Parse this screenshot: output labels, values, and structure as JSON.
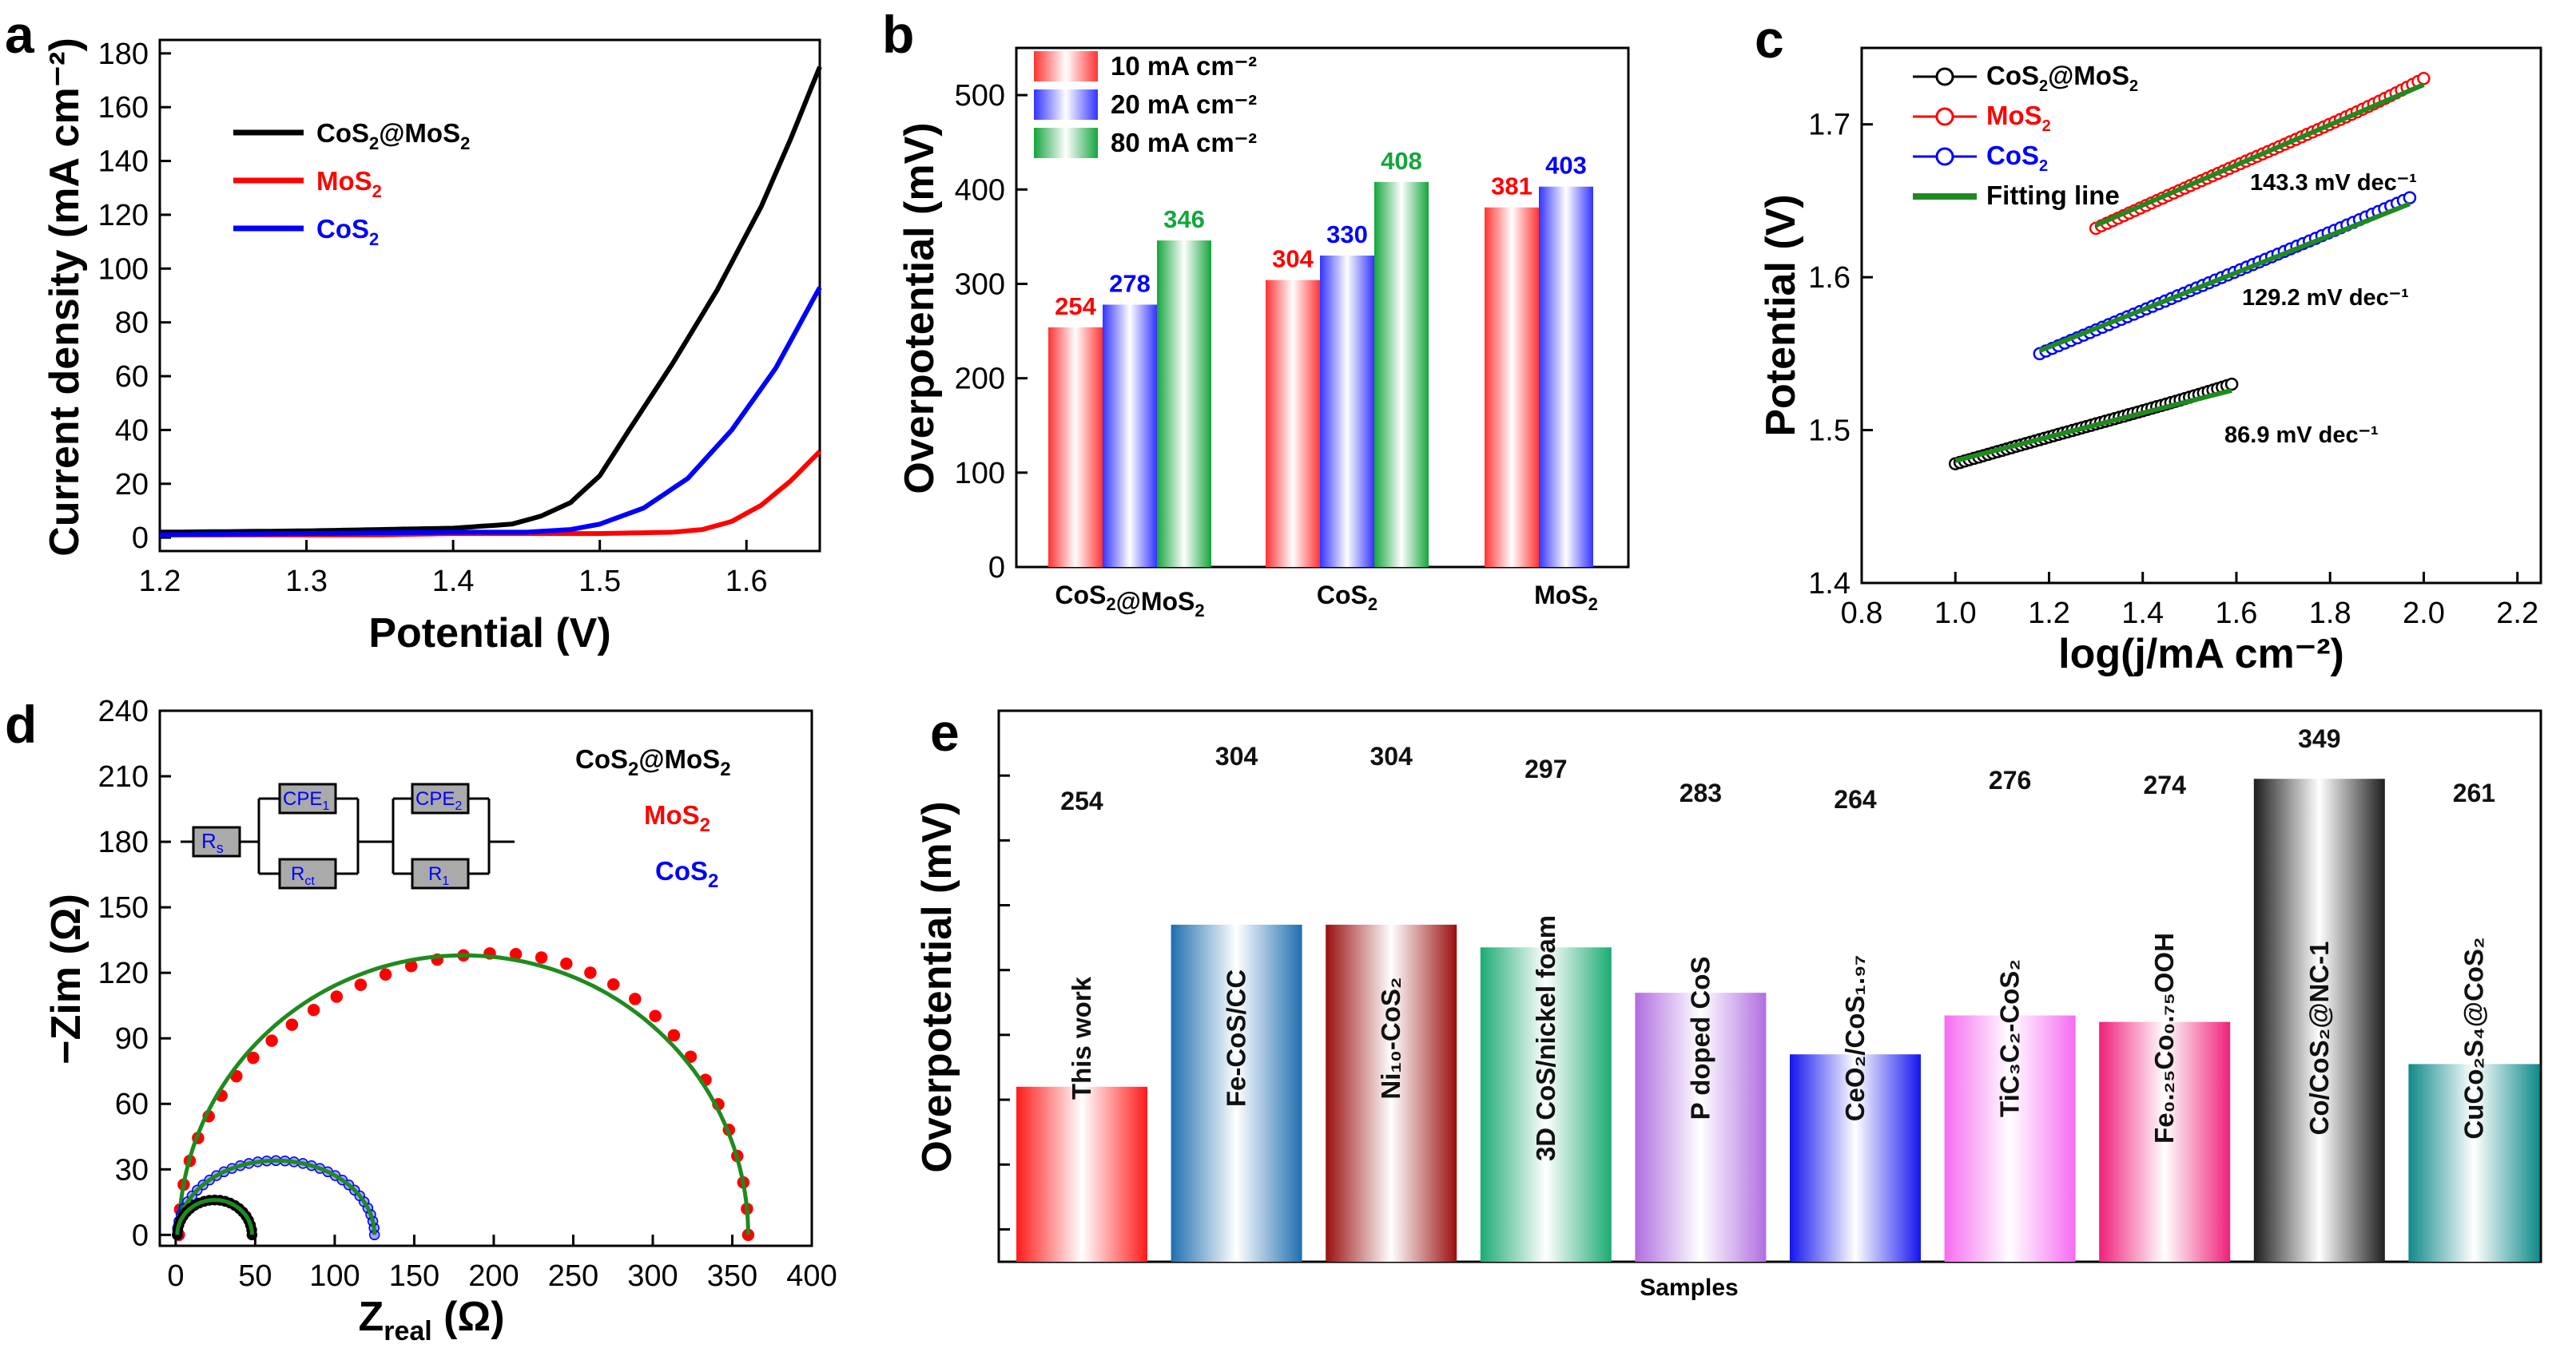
{
  "colors": {
    "cos2mos2": "#000000",
    "mos2": "#ff0000",
    "cos2": "#0000ff",
    "fit": "#1f8a1f",
    "bar10": "#ff3333",
    "bar20": "#3333ff",
    "bar80": "#14a53c"
  },
  "chart_data": [
    {
      "panel": "a",
      "type": "line",
      "xlabel": "Potential (V)",
      "ylabel": "Current density (mA cm⁻²)",
      "xlim": [
        1.2,
        1.65
      ],
      "ylim": [
        -5,
        185
      ],
      "xticks": [
        "1.2",
        "1.3",
        "1.4",
        "1.5",
        "1.6"
      ],
      "yticks": [
        "0",
        "20",
        "40",
        "60",
        "80",
        "100",
        "120",
        "140",
        "160",
        "180"
      ],
      "legend": [
        "CoS₂@MoS₂",
        "MoS₂",
        "CoS₂"
      ],
      "series": [
        {
          "name": "CoS₂@MoS₂",
          "x": [
            1.2,
            1.3,
            1.4,
            1.44,
            1.46,
            1.48,
            1.5,
            1.52,
            1.55,
            1.58,
            1.61,
            1.63,
            1.65
          ],
          "y": [
            2,
            2.5,
            3.5,
            5,
            8,
            13,
            23,
            40,
            65,
            92,
            123,
            148,
            175
          ]
        },
        {
          "name": "MoS₂",
          "x": [
            1.2,
            1.35,
            1.4,
            1.5,
            1.55,
            1.57,
            1.59,
            1.61,
            1.63,
            1.65
          ],
          "y": [
            1,
            1,
            1.5,
            1.5,
            2,
            3,
            6,
            12,
            21,
            32
          ]
        },
        {
          "name": "CoS₂",
          "x": [
            1.2,
            1.3,
            1.4,
            1.45,
            1.48,
            1.5,
            1.53,
            1.56,
            1.59,
            1.62,
            1.65
          ],
          "y": [
            1,
            1.5,
            2,
            2,
            3,
            5,
            11,
            22,
            40,
            63,
            93
          ]
        }
      ]
    },
    {
      "panel": "b",
      "type": "bar",
      "ylabel": "Overpotential (mV)",
      "ylim": [
        0,
        550
      ],
      "yticks": [
        "0",
        "100",
        "200",
        "300",
        "400",
        "500"
      ],
      "categories": [
        "CoS₂@MoS₂",
        "CoS₂",
        "MoS₂"
      ],
      "series": [
        {
          "name": "10 mA cm⁻²",
          "values": [
            254,
            304,
            381
          ]
        },
        {
          "name": "20 mA cm⁻²",
          "values": [
            278,
            330,
            403
          ]
        },
        {
          "name": "80 mA cm⁻²",
          "values": [
            346,
            408,
            null
          ]
        }
      ],
      "labels": [
        "254",
        "278",
        "346",
        "304",
        "330",
        "408",
        "381",
        "403"
      ]
    },
    {
      "panel": "c",
      "type": "scatter",
      "xlabel": "log(j/mA cm⁻²)",
      "ylabel": "Potential (V)",
      "xlim": [
        0.8,
        2.25
      ],
      "ylim": [
        1.4,
        1.75
      ],
      "xticks": [
        "0.8",
        "1.0",
        "1.2",
        "1.4",
        "1.6",
        "1.8",
        "2.0",
        "2.2"
      ],
      "yticks": [
        "1.4",
        "1.5",
        "1.6",
        "1.7"
      ],
      "legend": [
        "CoS₂@MoS₂",
        "MoS₂",
        "CoS₂",
        "Fitting line"
      ],
      "series": [
        {
          "name": "CoS₂@MoS₂",
          "x": [
            1.0,
            1.59
          ],
          "y": [
            1.478,
            1.53
          ],
          "slope": "86.9 mV dec⁻¹"
        },
        {
          "name": "MoS₂",
          "x": [
            1.3,
            2.0
          ],
          "y": [
            1.632,
            1.73
          ],
          "slope": "143.3 mV dec⁻¹"
        },
        {
          "name": "CoS₂",
          "x": [
            1.18,
            1.97
          ],
          "y": [
            1.55,
            1.652
          ],
          "slope": "129.2 mV dec⁻¹"
        }
      ],
      "slopes": [
        "86.9 mV dec⁻¹",
        "143.3 mV dec⁻¹",
        "129.2 mV dec⁻¹"
      ]
    },
    {
      "panel": "d",
      "type": "scatter",
      "xlabel": "Z",
      "xlabel_sub": "real",
      "xlabel_unit": " (Ω)",
      "ylabel": "−Zim (Ω)",
      "xlim": [
        -10,
        400
      ],
      "ylim": [
        -5,
        240
      ],
      "xticks": [
        "0",
        "50",
        "100",
        "150",
        "200",
        "250",
        "300",
        "350",
        "400"
      ],
      "yticks": [
        "0",
        "30",
        "60",
        "90",
        "120",
        "150",
        "180",
        "210",
        "240"
      ],
      "legend": [
        "CoS₂@MoS₂",
        "MoS₂",
        "CoS₂"
      ],
      "circuit": [
        "R",
        "s",
        "CPE",
        "1",
        "R",
        "ct",
        "CPE",
        "2",
        "R",
        "1"
      ],
      "series": [
        {
          "name": "CoS₂@MoS₂",
          "arc_start": 1,
          "arc_end": 48,
          "peak": 16
        },
        {
          "name": "MoS₂",
          "arc_start": 2,
          "arc_end": 360,
          "peak": 128
        },
        {
          "name": "CoS₂",
          "arc_start": 1,
          "arc_end": 125,
          "peak": 34
        }
      ]
    },
    {
      "panel": "e",
      "type": "bar",
      "xlabel": "Samples",
      "ylabel": "Overpotential (mV)",
      "ylim": [
        200,
        370
      ],
      "categories": [
        "This work",
        "Fe-CoS/CC",
        "Ni₁₀-CoS₂",
        "3D CoS/nickel foam",
        "P doped CoS",
        "CeO₂/CoS₁.₉₇",
        "TiC₃C₂-CoS₂",
        "Fe₀.₂₅Co₀.₇₅OOH",
        "Co/CoS₂@NC-1",
        "CuCo₂S₄@CoS₂"
      ],
      "values": [
        254,
        304,
        304,
        297,
        283,
        264,
        276,
        274,
        349,
        261
      ],
      "value_labels": [
        "254",
        "304",
        "304",
        "297",
        "283",
        "264",
        "276",
        "274",
        "349",
        "261"
      ],
      "bar_colors": [
        "#ff1a1a",
        "#1f6fb0",
        "#9a0f0f",
        "#1bab72",
        "#b06ee0",
        "#1515f0",
        "#f56cf0",
        "#f0207a",
        "#1e1e1e",
        "#0f8a8a"
      ]
    }
  ]
}
